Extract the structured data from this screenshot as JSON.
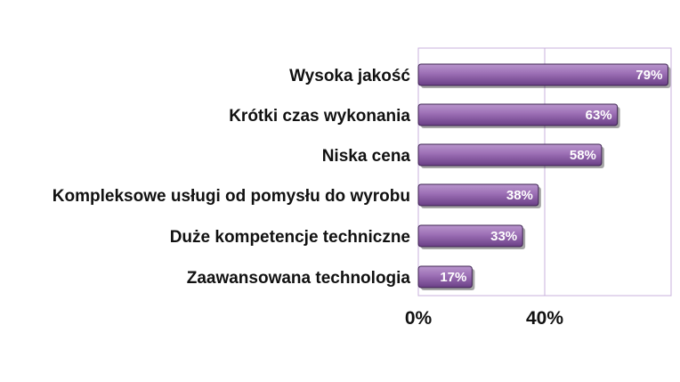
{
  "chart_data": {
    "type": "bar",
    "orientation": "horizontal",
    "categories": [
      "Wysoka jakość",
      "Krótki czas wykonania",
      "Niska cena",
      "Kompleksowe usługi od pomysłu do wyrobu",
      "Duże kompetencje techniczne",
      "Zaawansowana technologia"
    ],
    "values": [
      79,
      63,
      58,
      38,
      33,
      17
    ],
    "value_labels": [
      "79%",
      "63%",
      "58%",
      "38%",
      "33%",
      "17%"
    ],
    "x_ticks": [
      {
        "value": 0,
        "label": "0%"
      },
      {
        "value": 40,
        "label": "40%"
      }
    ],
    "xlim": [
      0,
      80
    ],
    "title": "",
    "xlabel": "",
    "ylabel": "",
    "grid": "vertical",
    "legend": "none",
    "colors": {
      "bar": "#9b6eb4",
      "bar_dark": "#6a3f86",
      "bar_light": "#b996cd",
      "bar_outline": "#3c2350",
      "plot_border": "#c9b2dc",
      "text": "#111111"
    }
  }
}
